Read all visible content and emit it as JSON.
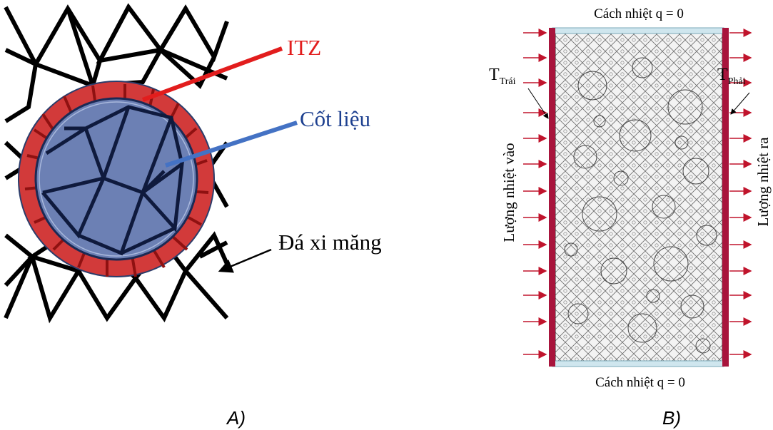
{
  "panel_a": {
    "caption": "A)",
    "labels": {
      "itz": "ITZ",
      "aggregate": "Cốt liệu",
      "cement": "Đá xi măng"
    },
    "colors": {
      "itz": "#e21d1d",
      "aggregate": "#1c3f8f",
      "cement": "#000000",
      "ring_fill": "#d23a3a",
      "core_fill": "#6c80b4"
    }
  },
  "panel_b": {
    "caption": "B)",
    "top_label": "Cách nhiệt q = 0",
    "bottom_label": "Cách nhiệt q = 0",
    "left_temp": {
      "symbol": "T",
      "subscript": "Trái"
    },
    "right_temp": {
      "symbol": "T",
      "subscript": "Phải"
    },
    "left_flux": "Lượng nhiệt vào",
    "right_flux": "Lượng nhiệt ra",
    "colors": {
      "boundary": "#a8143c",
      "insulation": "#cfe6ee",
      "arrow": "#c0142c",
      "mesh": "#555555"
    }
  }
}
